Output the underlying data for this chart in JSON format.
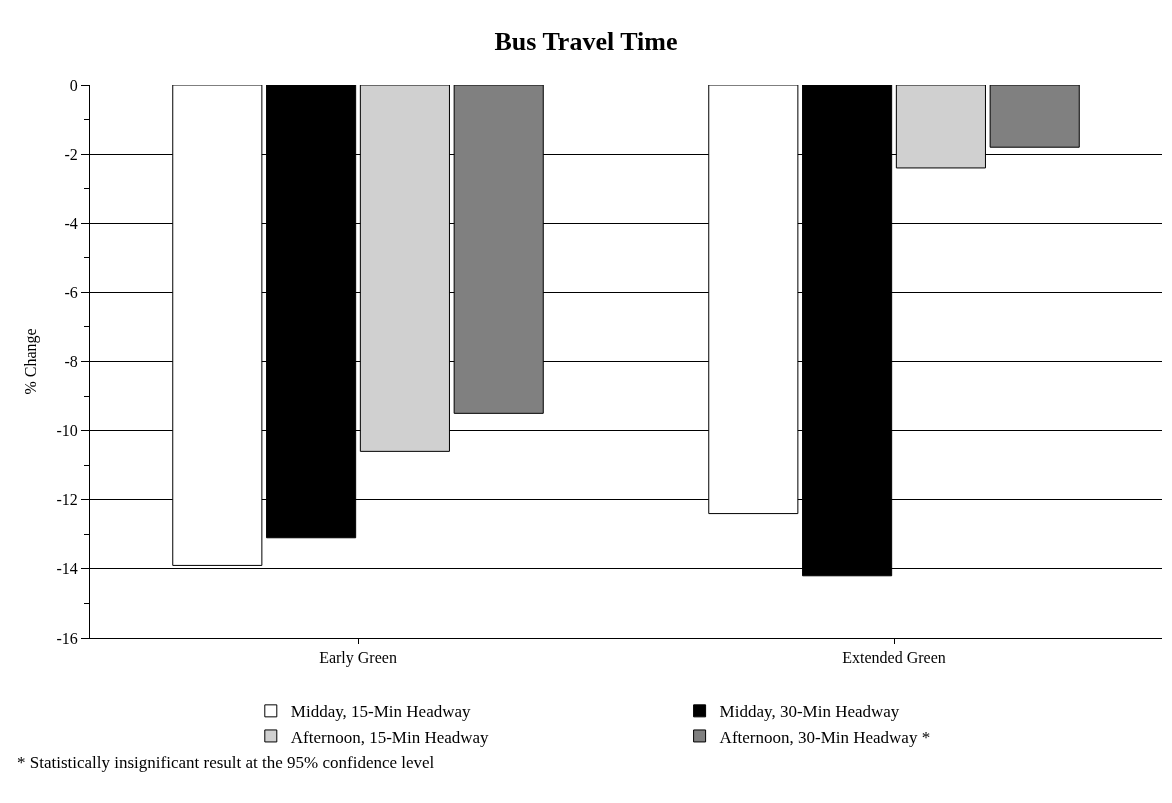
{
  "chart_data": {
    "type": "bar",
    "title": "Bus Travel Time",
    "ylabel": "% Change",
    "categories": [
      "Early Green",
      "Extended Green"
    ],
    "series": [
      {
        "name": "Midday, 15-Min Headway",
        "color": "#ffffff",
        "values": [
          -13.9,
          -12.4
        ]
      },
      {
        "name": "Midday, 30-Min Headway",
        "color": "#000000",
        "values": [
          -13.1,
          -14.2
        ]
      },
      {
        "name": "Afternoon, 15-Min Headway",
        "color": "#d0d0d0",
        "values": [
          -10.6,
          -2.4
        ]
      },
      {
        "name": "Afternoon, 30-Min Headway *",
        "color": "#808080",
        "values": [
          -9.5,
          -1.8
        ]
      }
    ],
    "ylim": [
      -16,
      0
    ],
    "yticks": [
      -16,
      -14,
      -12,
      -10,
      -8,
      -6,
      -4,
      -2,
      0
    ],
    "grid": "y",
    "legend": "bottom",
    "annotations": [
      "* Statistically insignificant result at the 95% confidence level"
    ]
  }
}
